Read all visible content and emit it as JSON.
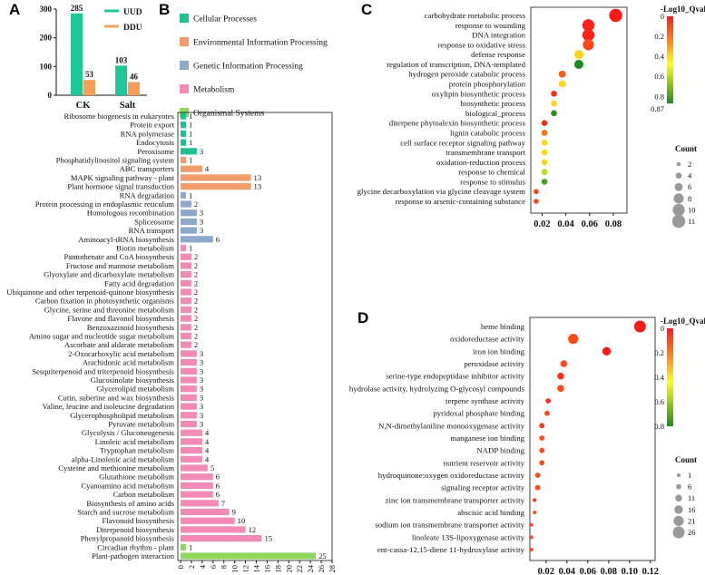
{
  "panel_labels": {
    "a": "A",
    "b": "B",
    "c": "C",
    "d": "D"
  },
  "colors": {
    "UUD": "#1ec797",
    "DDU": "#f5a05a",
    "Cellular Processes": "#1fbf96",
    "Environmental Information Processing": "#f39b6a",
    "Genetic Information Processing": "#8ea8cc",
    "Metabolism": "#f28ab8",
    "Organismal Systems": "#8fd65c"
  },
  "chart_data": [
    {
      "id": "A",
      "type": "bar",
      "categories": [
        "CK",
        "Salt"
      ],
      "series": [
        {
          "name": "UUD",
          "values": [
            285,
            103
          ]
        },
        {
          "name": "DDU",
          "values": [
            53,
            46
          ]
        }
      ],
      "ylim": [
        0,
        300
      ],
      "yticks": [
        "0",
        "100",
        "200",
        "300"
      ]
    },
    {
      "id": "B",
      "type": "bar",
      "orientation": "horizontal",
      "legend": [
        "Cellular Processes",
        "Environmental Information Processing",
        "Genetic Information Processing",
        "Metabolism",
        "Organismal Systems"
      ],
      "categories": [
        "Ribosome biogenesis in eukaryotes",
        "Protein export",
        "RNA polymerase",
        "Endocytosis",
        "Peroxisome",
        "Phosphatidylinositol signaling system",
        "ABC transporters",
        "MAPK signaling pathway - plant",
        "Plant hormone signal transduction",
        "RNA degradation",
        "Protein processing in endoplasmic reticulum",
        "Homologous recombination",
        "Spliceosome",
        "RNA transport",
        "Aminoacyl-tRNA biosynthesis",
        "Biotin metabolism",
        "Pantothenate and CoA biosynthesis",
        "Fructose and mannose metabolism",
        "Glyoxylate and dicarboxylate metabolism",
        "Fatty acid degradation",
        "Ubiquinone and other terpenoid-quinone biosynthesis",
        "Carbon fixation in photosynthetic organisms",
        "Glycine, serine and threonine metabolism",
        "Flavone and flavonol biosynthesis",
        "Benzoxazinoid biosynthesis",
        "Amino sugar and nucleotide sugar metabolism",
        "Ascorbate and aldarate metabolism",
        "2-Oxocarboxylic acid metabolism",
        "Arachidonic acid metabolism",
        "Sesquiterpenoid and triterpenoid biosynthesis",
        "Glucosinolate biosynthesis",
        "Glycerolipid metabolism",
        "Cutin, suberine and wax biosynthesis",
        "Valine, leucine and isoleucine degradation",
        "Glycerophospholipid metabolism",
        "Pyruvate metabolism",
        "Glycolysis / Gluconeogenesis",
        "Linoleic acid metabolism",
        "Tryptophan metabolism",
        "alpha-Linolenic acid metabolism",
        "Cysteine and methionine metabolism",
        "Glutathione metabolism",
        "Cyanoamino acid metabolism",
        "Carbon metabolism",
        "Biosynthesis of amino acids",
        "Starch and sucrose metabolism",
        "Flavonoid biosynthesis",
        "Diterpenoid biosynthesis",
        "Phenylpropanoid biosynthesis",
        "Circadian rhythm - plant",
        "Plant-pathogen interaction"
      ],
      "values": [
        1,
        1,
        1,
        1,
        3,
        1,
        4,
        13,
        13,
        1,
        2,
        3,
        3,
        3,
        6,
        1,
        2,
        2,
        2,
        2,
        2,
        2,
        2,
        2,
        2,
        2,
        2,
        3,
        3,
        3,
        3,
        3,
        3,
        3,
        3,
        3,
        4,
        4,
        4,
        4,
        5,
        6,
        6,
        6,
        7,
        9,
        10,
        12,
        15,
        1,
        25
      ],
      "groups": [
        "Cellular Processes",
        "Cellular Processes",
        "Cellular Processes",
        "Cellular Processes",
        "Cellular Processes",
        "Environmental Information Processing",
        "Environmental Information Processing",
        "Environmental Information Processing",
        "Environmental Information Processing",
        "Genetic Information Processing",
        "Genetic Information Processing",
        "Genetic Information Processing",
        "Genetic Information Processing",
        "Genetic Information Processing",
        "Genetic Information Processing",
        "Metabolism",
        "Metabolism",
        "Metabolism",
        "Metabolism",
        "Metabolism",
        "Metabolism",
        "Metabolism",
        "Metabolism",
        "Metabolism",
        "Metabolism",
        "Metabolism",
        "Metabolism",
        "Metabolism",
        "Metabolism",
        "Metabolism",
        "Metabolism",
        "Metabolism",
        "Metabolism",
        "Metabolism",
        "Metabolism",
        "Metabolism",
        "Metabolism",
        "Metabolism",
        "Metabolism",
        "Metabolism",
        "Metabolism",
        "Metabolism",
        "Metabolism",
        "Metabolism",
        "Metabolism",
        "Metabolism",
        "Metabolism",
        "Metabolism",
        "Metabolism",
        "Organismal Systems",
        "Organismal Systems"
      ],
      "xlim": [
        0,
        28
      ],
      "xticks": [
        "0",
        "2",
        "4",
        "6",
        "8",
        "10",
        "12",
        "14",
        "16",
        "18",
        "20",
        "22",
        "24",
        "26",
        "28"
      ]
    },
    {
      "id": "C",
      "type": "scatter",
      "categories": [
        "carbohydrate metabolic process",
        "response to wounding",
        "DNA integration",
        "response to oxidative stress",
        "defense response",
        "regulation of transcription, DNA-templated",
        "hydrogen peroxide catabolic process",
        "protein phosphorylation",
        "oxylipin biosynthetic process",
        "biosynthetic process",
        "biological_process",
        "diterpene phytoalexin biosynthetic process",
        "lignin catabolic process",
        "cell surface receptor signaling pathway",
        "transmembrane transport",
        "oxidation-reduction process",
        "response to chemical",
        "response to stimulus",
        "glycine decarboxylation via glycine cleavage system",
        "response to arsenic-containing substance"
      ],
      "x": [
        0.082,
        0.059,
        0.059,
        0.059,
        0.051,
        0.051,
        0.037,
        0.037,
        0.03,
        0.03,
        0.03,
        0.022,
        0.022,
        0.022,
        0.022,
        0.022,
        0.022,
        0.022,
        0.015,
        0.015
      ],
      "count": [
        11,
        10,
        10,
        9,
        7,
        7,
        5,
        5,
        4,
        4,
        4,
        4,
        4,
        4,
        4,
        4,
        4,
        4,
        3,
        3
      ],
      "qvalue": [
        0,
        0.02,
        0.02,
        0.1,
        0.4,
        0.87,
        0.15,
        0.4,
        0.05,
        0.4,
        0.85,
        0.05,
        0.2,
        0.4,
        0.4,
        0.4,
        0.6,
        0.8,
        0.1,
        0.1
      ],
      "xticks": [
        "0.02",
        "0.04",
        "0.06",
        "0.08"
      ],
      "xlim": [
        0.0105,
        0.0915
      ],
      "colorbar": {
        "title": "-Log10_Qvalue",
        "ticks": [
          "0",
          "0.2",
          "0.4",
          "0.6",
          "0.8",
          "0.87"
        ]
      },
      "size_legend": {
        "title": "Count",
        "values": [
          "2",
          "4",
          "6",
          "8",
          "10",
          "11"
        ]
      }
    },
    {
      "id": "D",
      "type": "scatter",
      "categories": [
        "heme binding",
        "oxidoreductase activity",
        "iron ion binding",
        "peroxidase activity",
        "serine-type endopeptidase inhibitor activity",
        "hydrolase activity, hydrolyzing O-glycosyl compounds",
        "terpene synthase activity",
        "pyridoxal phosphate binding",
        "N,N-dimethylaniline monooxygenase activity",
        "manganese ion binding",
        "NADP binding",
        "nutrient reservoir activity",
        "hydroquinone:oxygen oxidoreductase activity",
        "signaling receptor activity",
        "zinc ion transmembrane transporter activity",
        "abscisic acid binding",
        "sodium ion transmembrane transporter activity",
        "linoleate 13S-lipoxygenase activity",
        "ent-cassa-12,15-diene 11-hydroxylase activity"
      ],
      "x": [
        0.11,
        0.046,
        0.078,
        0.037,
        0.034,
        0.034,
        0.022,
        0.021,
        0.016,
        0.016,
        0.016,
        0.016,
        0.012,
        0.012,
        0.009,
        0.009,
        0.006,
        0.006,
        0.006
      ],
      "count": [
        26,
        21,
        16,
        11,
        11,
        11,
        6,
        6,
        6,
        6,
        6,
        6,
        6,
        6,
        1,
        1,
        1,
        1,
        1
      ],
      "qvalue": [
        0,
        0.1,
        0,
        0.1,
        0.05,
        0.1,
        0.05,
        0.1,
        0.05,
        0.1,
        0.1,
        0.1,
        0.1,
        0.1,
        0.05,
        0.1,
        0.1,
        0.1,
        0.1
      ],
      "xticks": [
        "0.02",
        "0.04",
        "0.06",
        "0.08",
        "0.10",
        "0.12"
      ],
      "xlim": [
        0.0045,
        0.1245
      ],
      "colorbar": {
        "title": "-Log10_Qvalue",
        "ticks": [
          "0",
          "0.2",
          "0.4",
          "0.6",
          "0.8"
        ]
      },
      "size_legend": {
        "title": "Count",
        "values": [
          "1",
          "6",
          "11",
          "16",
          "21",
          "26"
        ]
      }
    }
  ]
}
